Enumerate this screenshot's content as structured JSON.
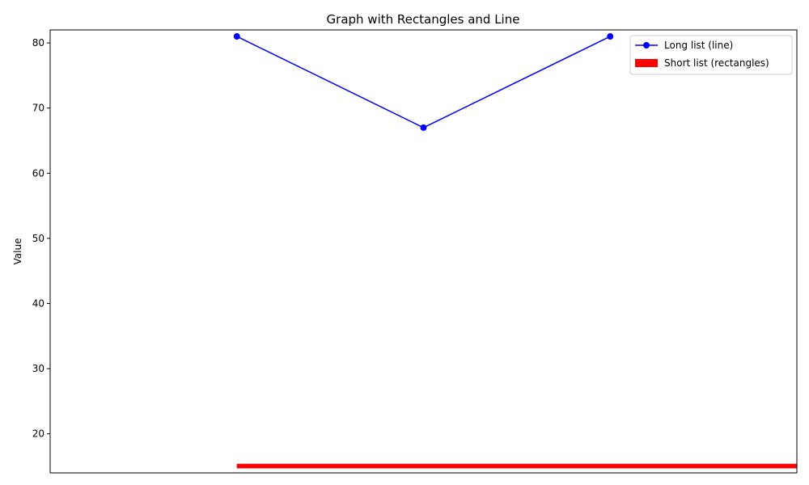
{
  "chart_data": {
    "type": "line",
    "title": "Graph with Rectangles and Line",
    "xlabel": "",
    "ylabel": "Value",
    "ylim": [
      14,
      82
    ],
    "xlim": [
      -1,
      3
    ],
    "yticks": [
      20,
      30,
      40,
      50,
      60,
      70,
      80
    ],
    "grid": false,
    "legend_position": "top-right",
    "series": [
      {
        "name": "Long list (line)",
        "kind": "line",
        "color": "#0000ff",
        "x": [
          0,
          1,
          2
        ],
        "y": [
          81,
          67,
          81
        ]
      },
      {
        "name": "Short list (rectangles)",
        "kind": "rectangles",
        "color": "#ff0000",
        "x_start": 0,
        "x_end": 3,
        "y_bottom": 14.7,
        "y_top": 15.4
      }
    ]
  }
}
